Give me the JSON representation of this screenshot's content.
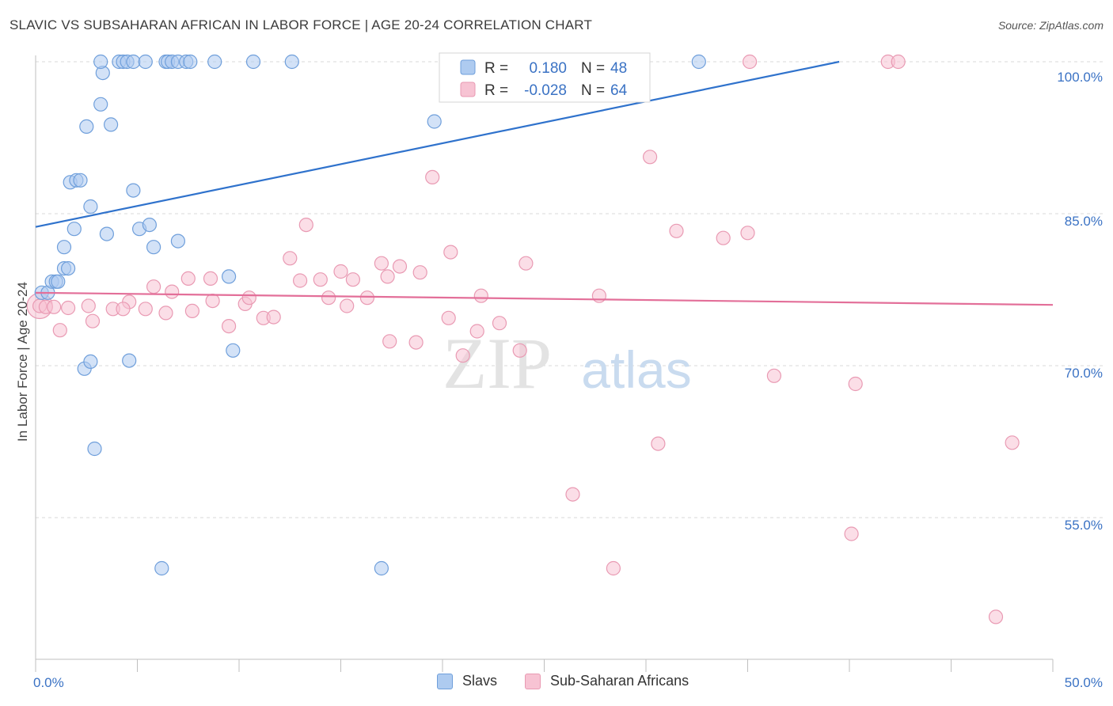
{
  "title": "SLAVIC VS SUBSAHARAN AFRICAN IN LABOR FORCE | AGE 20-24 CORRELATION CHART",
  "source": "Source: ZipAtlas.com",
  "watermark": {
    "zip": "ZIP",
    "atlas": "atlas"
  },
  "colors": {
    "blue_fill": "#aecbf0",
    "blue_stroke": "#6f9fdb",
    "blue_line": "#2f72cc",
    "pink_fill": "#f7c3d3",
    "pink_stroke": "#e99ab3",
    "pink_line": "#e36f99",
    "axis_label": "#3a72c4",
    "grid": "#d9d9d9"
  },
  "legend": {
    "rows": [
      {
        "r_label": "R =",
        "r_value": "0.180",
        "n_label": "N =",
        "n_value": "48"
      },
      {
        "r_label": "R =",
        "r_value": "-0.028",
        "n_label": "N =",
        "n_value": "64"
      }
    ]
  },
  "bottom_legend": {
    "slavs": "Slavs",
    "subsaharan": "Sub-Saharan Africans"
  },
  "chart_data": {
    "type": "scatter",
    "title": "SLAVIC VS SUBSAHARAN AFRICAN IN LABOR FORCE | AGE 20-24 CORRELATION CHART",
    "xlabel": "",
    "ylabel": "In Labor Force | Age 20-24",
    "xlim": [
      0,
      50
    ],
    "ylim": [
      40,
      101
    ],
    "x_tick_labels": [
      "0.0%",
      "50.0%"
    ],
    "y_ticks": [
      55,
      70,
      85,
      100
    ],
    "y_tick_labels": [
      "55.0%",
      "70.0%",
      "85.0%",
      "100.0%"
    ],
    "grid": true,
    "legend_position": "top-center",
    "series": [
      {
        "name": "Slavs",
        "r": 0.18,
        "n": 48,
        "trend": {
          "x": [
            0,
            39.5
          ],
          "y": [
            83.7,
            100.0
          ]
        },
        "points": [
          [
            0.3,
            77.2
          ],
          [
            0.6,
            77.2
          ],
          [
            0.8,
            78.3
          ],
          [
            1.0,
            78.3
          ],
          [
            1.1,
            78.3
          ],
          [
            1.4,
            79.6
          ],
          [
            1.6,
            79.6
          ],
          [
            1.4,
            81.7
          ],
          [
            1.9,
            83.5
          ],
          [
            1.7,
            88.1
          ],
          [
            2.0,
            88.3
          ],
          [
            2.2,
            88.3
          ],
          [
            2.5,
            93.6
          ],
          [
            3.2,
            95.8
          ],
          [
            3.3,
            98.9
          ],
          [
            3.2,
            100.0
          ],
          [
            4.1,
            100.0
          ],
          [
            4.3,
            100.0
          ],
          [
            4.5,
            100.0
          ],
          [
            4.8,
            100.0
          ],
          [
            5.4,
            100.0
          ],
          [
            6.4,
            100.0
          ],
          [
            6.5,
            100.0
          ],
          [
            6.7,
            100.0
          ],
          [
            7.0,
            100.0
          ],
          [
            7.4,
            100.0
          ],
          [
            7.6,
            100.0
          ],
          [
            8.8,
            100.0
          ],
          [
            10.7,
            100.0
          ],
          [
            12.6,
            100.0
          ],
          [
            3.7,
            93.8
          ],
          [
            2.7,
            85.7
          ],
          [
            3.5,
            83.0
          ],
          [
            4.8,
            87.3
          ],
          [
            5.1,
            83.5
          ],
          [
            5.6,
            83.9
          ],
          [
            5.8,
            81.7
          ],
          [
            7.0,
            82.3
          ],
          [
            9.5,
            78.8
          ],
          [
            9.7,
            71.5
          ],
          [
            2.4,
            69.7
          ],
          [
            2.7,
            70.4
          ],
          [
            4.6,
            70.5
          ],
          [
            2.9,
            61.8
          ],
          [
            6.2,
            50.0
          ],
          [
            17.0,
            50.0
          ],
          [
            19.6,
            94.1
          ],
          [
            32.6,
            100.0
          ]
        ]
      },
      {
        "name": "Sub-Saharan Africans",
        "r": -0.028,
        "n": 64,
        "trend": {
          "x": [
            0,
            50
          ],
          "y": [
            77.2,
            76.0
          ]
        },
        "points": [
          [
            0.2,
            75.9
          ],
          [
            0.5,
            75.8
          ],
          [
            0.9,
            75.8
          ],
          [
            1.6,
            75.7
          ],
          [
            2.6,
            75.9
          ],
          [
            3.8,
            75.6
          ],
          [
            4.6,
            76.3
          ],
          [
            5.4,
            75.6
          ],
          [
            1.2,
            73.5
          ],
          [
            2.8,
            74.4
          ],
          [
            4.3,
            75.6
          ],
          [
            6.4,
            75.2
          ],
          [
            7.7,
            75.4
          ],
          [
            8.7,
            76.4
          ],
          [
            9.5,
            73.9
          ],
          [
            10.3,
            76.1
          ],
          [
            11.2,
            74.7
          ],
          [
            11.7,
            74.8
          ],
          [
            5.8,
            77.8
          ],
          [
            6.7,
            77.3
          ],
          [
            7.5,
            78.6
          ],
          [
            8.6,
            78.6
          ],
          [
            10.5,
            76.7
          ],
          [
            12.5,
            80.6
          ],
          [
            13.0,
            78.4
          ],
          [
            13.3,
            83.9
          ],
          [
            14.0,
            78.5
          ],
          [
            14.4,
            76.7
          ],
          [
            15.3,
            75.9
          ],
          [
            15.0,
            79.3
          ],
          [
            15.6,
            78.5
          ],
          [
            16.3,
            76.7
          ],
          [
            17.0,
            80.1
          ],
          [
            17.3,
            78.8
          ],
          [
            17.9,
            79.8
          ],
          [
            18.9,
            79.2
          ],
          [
            17.4,
            72.4
          ],
          [
            18.7,
            72.3
          ],
          [
            19.5,
            88.6
          ],
          [
            20.4,
            81.2
          ],
          [
            21.0,
            71.0
          ],
          [
            21.7,
            73.4
          ],
          [
            21.9,
            76.9
          ],
          [
            22.8,
            74.2
          ],
          [
            23.8,
            71.5
          ],
          [
            24.1,
            80.1
          ],
          [
            27.7,
            76.9
          ],
          [
            28.4,
            50.0
          ],
          [
            30.2,
            90.6
          ],
          [
            30.6,
            62.3
          ],
          [
            31.5,
            83.3
          ],
          [
            33.8,
            82.6
          ],
          [
            35.0,
            83.1
          ],
          [
            35.1,
            100.0
          ],
          [
            36.3,
            69.0
          ],
          [
            26.4,
            57.3
          ],
          [
            27.5,
            100.0
          ],
          [
            40.3,
            68.2
          ],
          [
            40.1,
            53.4
          ],
          [
            41.9,
            100.0
          ],
          [
            42.4,
            100.0
          ],
          [
            47.2,
            45.2
          ],
          [
            48.0,
            62.4
          ],
          [
            20.3,
            74.7
          ]
        ]
      }
    ]
  }
}
